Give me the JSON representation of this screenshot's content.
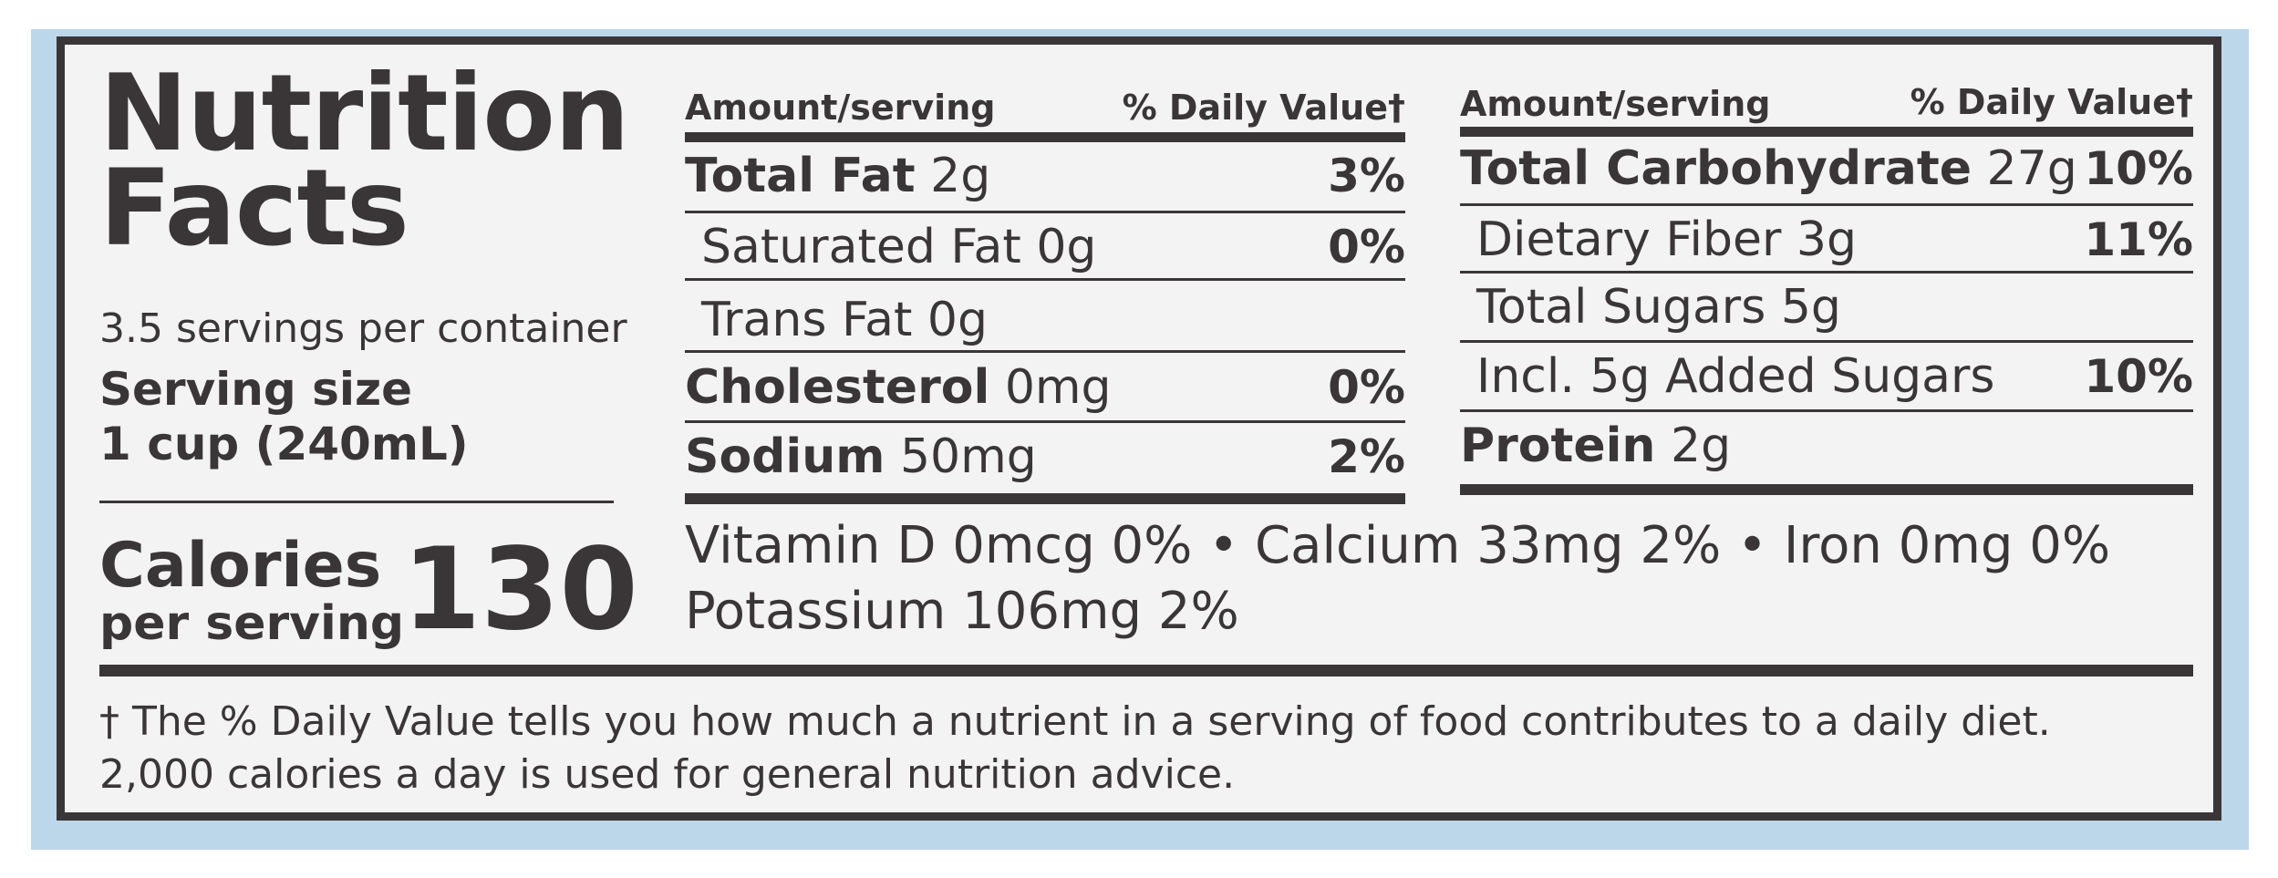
{
  "title_line1": "Nutrition",
  "title_line2": "Facts",
  "servings_per_container": "3.5 servings per container",
  "serving_size_label": "Serving size",
  "serving_size_value": "1 cup (240mL)",
  "calories_label": "Calories",
  "calories_sub": "per serving",
  "calories_value": "130",
  "left_table": {
    "header_amount": "Amount/serving",
    "header_dv": "% Daily Value†",
    "rows": [
      {
        "name": "Total Fat",
        "amount": "2g",
        "dv": "3%"
      },
      {
        "name": "Saturated Fat",
        "amount": "0g",
        "dv": "0%"
      },
      {
        "name": "Trans Fat",
        "amount": "0g",
        "dv": ""
      },
      {
        "name": "Cholesterol",
        "amount": "0mg",
        "dv": "0%"
      },
      {
        "name": "Sodium",
        "amount": "50mg",
        "dv": "2%"
      }
    ]
  },
  "right_table": {
    "header_amount": "Amount/serving",
    "header_dv": "% Daily Value†",
    "rows": [
      {
        "name": "Total Carbohydrate",
        "amount": "27g",
        "dv": "10%"
      },
      {
        "name": "Dietary Fiber",
        "amount": "3g",
        "dv": "11%"
      },
      {
        "name": "Total Sugars",
        "amount": "5g",
        "dv": ""
      },
      {
        "name": "Incl. 5g Added Sugars",
        "amount": "",
        "dv": "10%"
      },
      {
        "name": "Protein",
        "amount": "2g",
        "dv": ""
      }
    ]
  },
  "vitamins_line1": "Vitamin D 0mcg 0% • Calcium 33mg 2% • Iron 0mg 0%",
  "vitamins_line2": "Potassium 106mg 2%",
  "footnote_line1": "† The % Daily Value tells you how much a nutrient in a serving of food contributes to a daily diet.",
  "footnote_line2": "2,000 calories a day is used for general nutrition advice.",
  "colors": {
    "ink": "#3a3637",
    "panel": "#f3f3f4",
    "backdrop": "#bcd6ea"
  }
}
